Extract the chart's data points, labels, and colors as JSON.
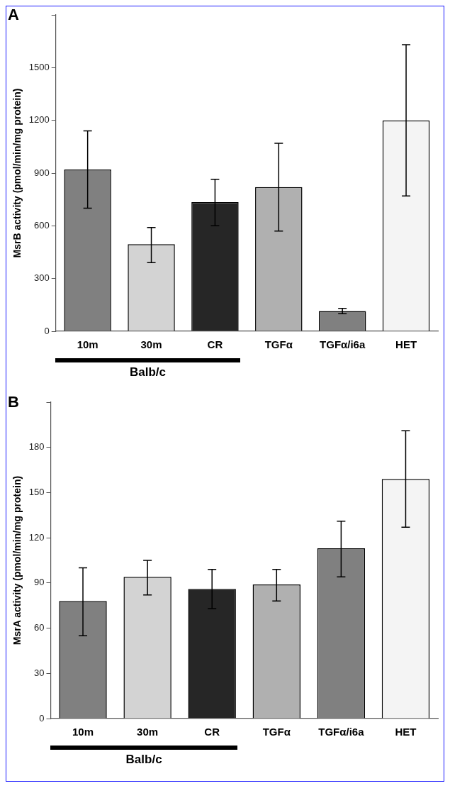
{
  "chart_data": [
    {
      "type": "bar",
      "ylabel": "MsrB activity (pmol/min/mg protein)",
      "categories": [
        "10m",
        "30m",
        "CR",
        "TGFα",
        "TGFα/i6a",
        "HET"
      ],
      "values": [
        920,
        495,
        735,
        820,
        115,
        1200
      ],
      "colors": [
        "#808080",
        "#d3d3d3",
        "#262626",
        "#b0b0b0",
        "#808080",
        "#f4f4f4"
      ],
      "errors": [
        [
          700,
          1140
        ],
        [
          390,
          590
        ],
        [
          600,
          865
        ],
        [
          570,
          1070
        ],
        [
          100,
          130
        ],
        [
          770,
          1630
        ]
      ],
      "ylim": [
        0,
        1800
      ],
      "yticks": [
        0,
        300,
        600,
        900,
        1200,
        1500,
        {
          "value": 1800,
          "label": null
        }
      ],
      "grid": false,
      "legend": false,
      "annotations": [
        "A",
        "Balb/c"
      ]
    },
    {
      "type": "bar",
      "ylabel": "MsrA activity (pmol/min/mg protein)",
      "categories": [
        "10m",
        "30m",
        "CR",
        "TGFα",
        "TGFα/i6a",
        "HET"
      ],
      "values": [
        78,
        94,
        86,
        89,
        113,
        159
      ],
      "colors": [
        "#808080",
        "#d3d3d3",
        "#262626",
        "#b0b0b0",
        "#808080",
        "#f4f4f4"
      ],
      "errors": [
        [
          55,
          100
        ],
        [
          82,
          105
        ],
        [
          73,
          99
        ],
        [
          78,
          99
        ],
        [
          94,
          131
        ],
        [
          127,
          191
        ]
      ],
      "ylim": [
        0,
        210
      ],
      "yticks": [
        0,
        30,
        60,
        90,
        120,
        150,
        180,
        {
          "value": 210,
          "label": null
        }
      ],
      "grid": false,
      "legend": false,
      "annotations": [
        "B",
        "Balb/c"
      ]
    }
  ]
}
